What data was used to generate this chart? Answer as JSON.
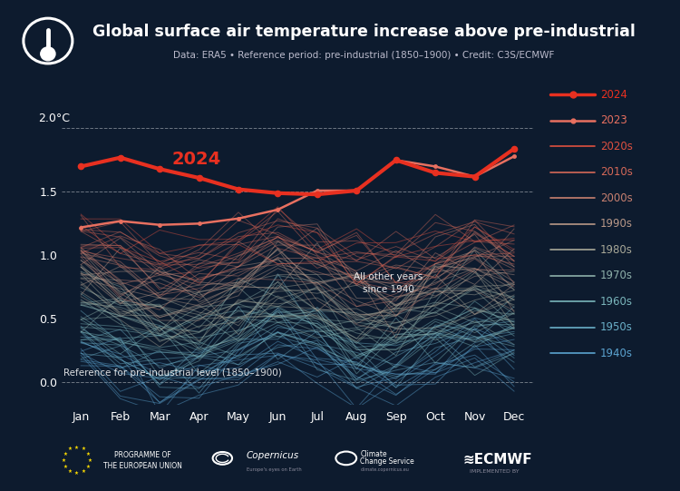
{
  "title": "Global surface air temperature increase above pre-industrial",
  "subtitle": "Data: ERA5 • Reference period: pre-industrial (1850–1900) • Credit: C3S/ECMWF",
  "bg_color": "#0d1b2e",
  "text_color": "#ffffff",
  "ylim": [
    -0.18,
    2.18
  ],
  "dashed_lines": [
    0.0,
    1.5,
    2.0
  ],
  "months": [
    "Jan",
    "Feb",
    "Mar",
    "Apr",
    "May",
    "Jun",
    "Jul",
    "Aug",
    "Sep",
    "Oct",
    "Nov",
    "Dec"
  ],
  "data_2024": [
    1.7,
    1.77,
    1.68,
    1.61,
    1.52,
    1.49,
    1.48,
    1.51,
    1.75,
    1.65,
    1.62,
    1.84
  ],
  "data_2023": [
    1.22,
    1.27,
    1.24,
    1.25,
    1.29,
    1.36,
    1.51,
    1.51,
    1.75,
    1.7,
    1.62,
    1.78
  ],
  "decade_colors": {
    "1940s": "#5ba3d0",
    "1950s": "#6aafc8",
    "1960s": "#7ab5bb",
    "1970s": "#8eb0aa",
    "1980s": "#a8a898",
    "1990s": "#b89888",
    "2000s": "#c88070",
    "2010s": "#d46858",
    "2020s": "#de5040"
  },
  "legend_items": [
    {
      "label": "2024",
      "color": "#e83020",
      "lw": 2.5,
      "marker": true
    },
    {
      "label": "2023",
      "color": "#e87060",
      "lw": 1.8,
      "marker": true
    },
    {
      "label": "2020s",
      "color": "#de5040",
      "lw": 1.2,
      "marker": false
    },
    {
      "label": "2010s",
      "color": "#d46858",
      "lw": 1.2,
      "marker": false
    },
    {
      "label": "2000s",
      "color": "#c88070",
      "lw": 1.2,
      "marker": false
    },
    {
      "label": "1990s",
      "color": "#b89888",
      "lw": 1.2,
      "marker": false
    },
    {
      "label": "1980s",
      "color": "#a8a898",
      "lw": 1.2,
      "marker": false
    },
    {
      "label": "1970s",
      "color": "#8eb0aa",
      "lw": 1.2,
      "marker": false
    },
    {
      "label": "1960s",
      "color": "#7ab5bb",
      "lw": 1.2,
      "marker": false
    },
    {
      "label": "1950s",
      "color": "#6aafc8",
      "lw": 1.2,
      "marker": false
    },
    {
      "label": "1940s",
      "color": "#5ba3d0",
      "lw": 1.2,
      "marker": false
    }
  ],
  "reference_label": "Reference for pre-industrial level (1850–1900)",
  "annotation": "All other years\nsince 1940",
  "label_2024": "2024",
  "color_2024": "#e83020",
  "color_2023": "#e87060"
}
